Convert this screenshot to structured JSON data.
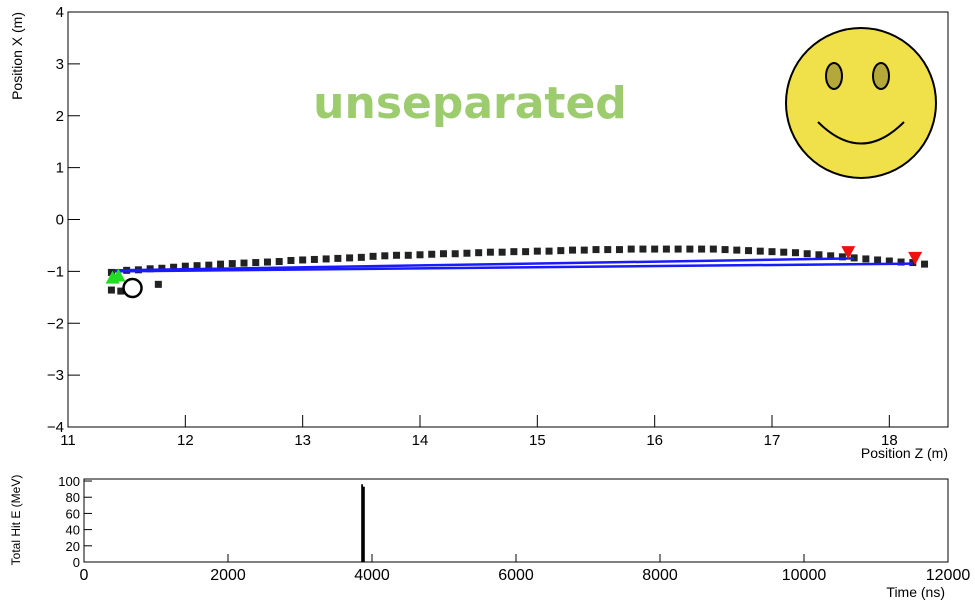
{
  "chart_data": [
    {
      "type": "scatter",
      "xlabel": "Position Z (m)",
      "ylabel": "Position X (m)",
      "annotation": "unseparated",
      "xlim": [
        11,
        18.5
      ],
      "ylim": [
        -4,
        4
      ],
      "xticks": [
        11,
        12,
        13,
        14,
        15,
        16,
        17,
        18
      ],
      "yticks": [
        {
          "value": -4,
          "label": "−4"
        },
        {
          "value": -3,
          "label": "−3"
        },
        {
          "value": -2,
          "label": "−2"
        },
        {
          "value": -1,
          "label": "−1"
        },
        0,
        1,
        2,
        3,
        4
      ],
      "series": [
        {
          "color": "#222222",
          "marker": "square",
          "x": [
            11.37,
            11.37,
            11.45,
            11.77,
            11.5,
            11.6,
            11.7,
            11.8,
            11.9,
            12.0,
            12.1,
            12.2,
            12.3,
            12.4,
            12.5,
            12.6,
            12.7,
            12.8,
            12.9,
            13.0,
            13.1,
            13.2,
            13.3,
            13.4,
            13.5,
            13.6,
            13.7,
            13.8,
            13.9,
            14.0,
            14.1,
            14.2,
            14.3,
            14.4,
            14.5,
            14.6,
            14.7,
            14.8,
            14.9,
            15.0,
            15.1,
            15.2,
            15.3,
            15.4,
            15.5,
            15.6,
            15.7,
            15.8,
            15.9,
            16.0,
            16.1,
            16.2,
            16.3,
            16.4,
            16.5,
            16.6,
            16.7,
            16.8,
            16.9,
            17.0,
            17.1,
            17.2,
            17.3,
            17.4,
            17.5,
            17.6,
            17.7,
            17.8,
            17.9,
            18.0,
            18.1,
            18.2,
            18.3
          ],
          "values": [
            -1.02,
            -1.36,
            -1.38,
            -1.25,
            -0.98,
            -0.97,
            -0.95,
            -0.94,
            -0.92,
            -0.9,
            -0.89,
            -0.88,
            -0.86,
            -0.85,
            -0.84,
            -0.83,
            -0.82,
            -0.81,
            -0.79,
            -0.78,
            -0.77,
            -0.76,
            -0.75,
            -0.74,
            -0.73,
            -0.71,
            -0.7,
            -0.69,
            -0.69,
            -0.68,
            -0.67,
            -0.66,
            -0.66,
            -0.65,
            -0.64,
            -0.63,
            -0.63,
            -0.62,
            -0.62,
            -0.61,
            -0.61,
            -0.6,
            -0.59,
            -0.59,
            -0.58,
            -0.58,
            -0.58,
            -0.57,
            -0.57,
            -0.57,
            -0.57,
            -0.57,
            -0.57,
            -0.57,
            -0.57,
            -0.58,
            -0.59,
            -0.6,
            -0.61,
            -0.62,
            -0.63,
            -0.64,
            -0.66,
            -0.68,
            -0.7,
            -0.72,
            -0.74,
            -0.76,
            -0.78,
            -0.8,
            -0.82,
            -0.83,
            -0.86
          ]
        },
        {
          "color": "#1a1aff",
          "marker": "line",
          "x": [
            11.4,
            18.2
          ],
          "values": [
            -1.0,
            -0.85
          ]
        },
        {
          "color": "#1a1aff",
          "marker": "line",
          "x": [
            11.4,
            17.7
          ],
          "values": [
            -0.98,
            -0.75
          ]
        },
        {
          "color": "#22dd22",
          "marker": "triangle-up",
          "x": [
            11.38,
            11.43
          ],
          "values": [
            -1.12,
            -1.08
          ]
        },
        {
          "color": "#ee1111",
          "marker": "triangle-down",
          "x": [
            17.65,
            18.22
          ],
          "values": [
            -0.63,
            -0.74
          ]
        },
        {
          "color": "#000000",
          "marker": "circle",
          "x": [
            11.55
          ],
          "values": [
            -1.32
          ]
        }
      ]
    },
    {
      "type": "histogram",
      "xlabel": "Time (ns)",
      "ylabel": "Total Hit E (MeV)",
      "xlim": [
        0,
        12000
      ],
      "ylim": [
        0,
        102.5
      ],
      "xticks": [
        0,
        2000,
        4000,
        6000,
        8000,
        10000,
        12000
      ],
      "yticks": [
        0,
        20,
        40,
        60,
        80,
        100
      ],
      "bins": [
        3850,
        3875,
        3900
      ],
      "counts": [
        96,
        93
      ],
      "color": "#000000"
    }
  ]
}
